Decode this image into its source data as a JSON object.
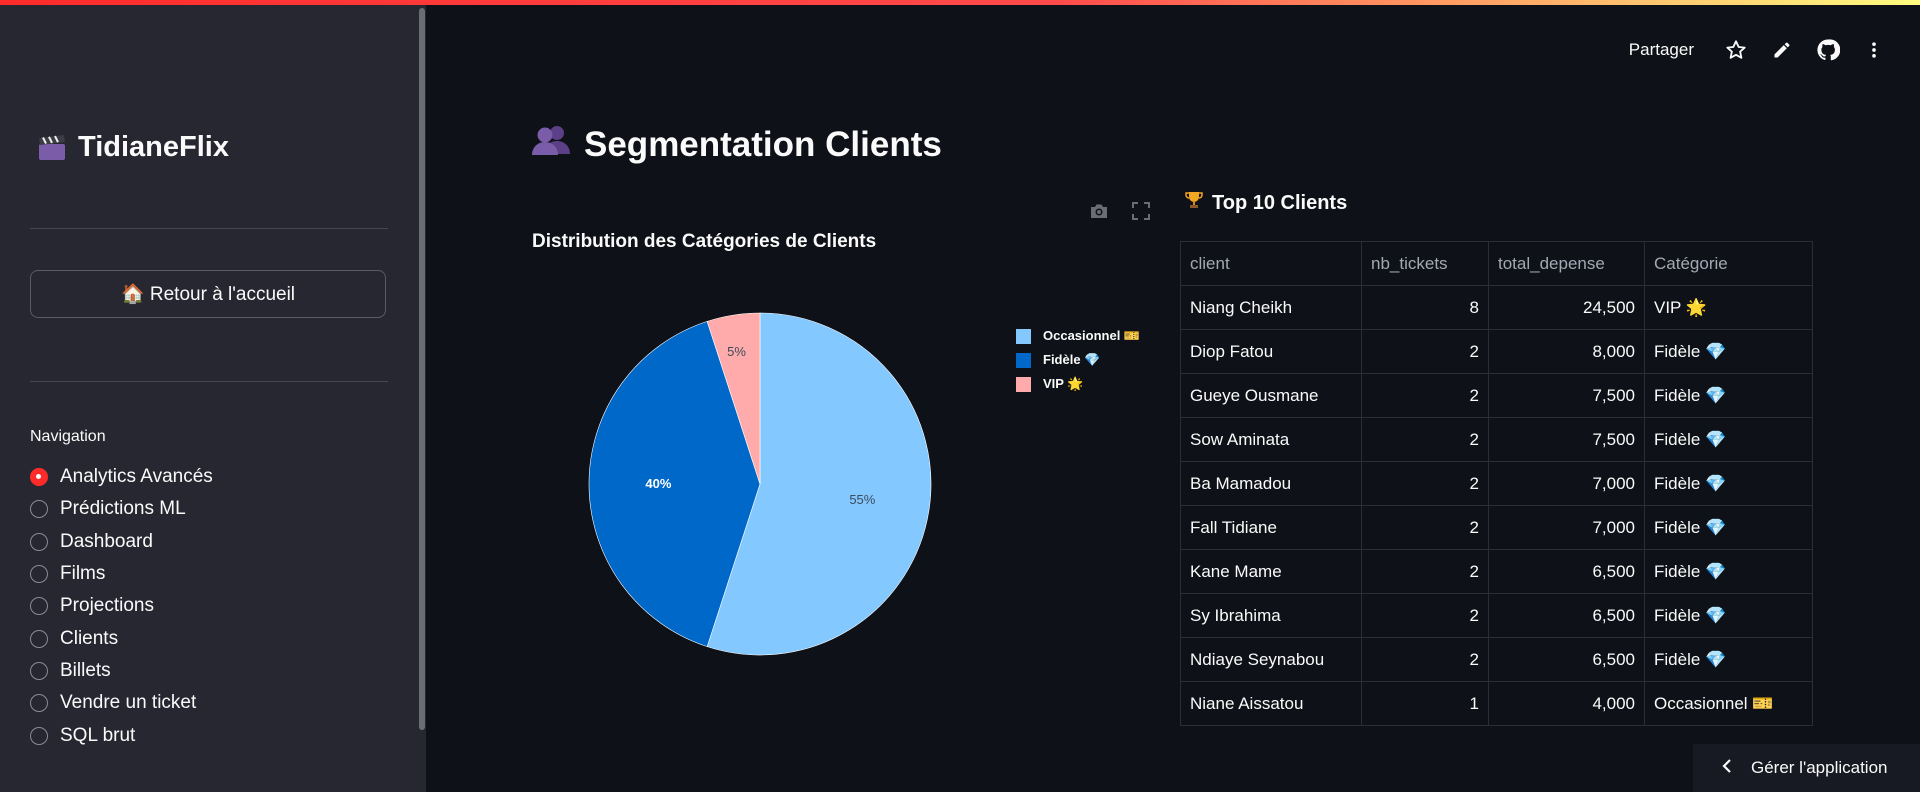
{
  "app": {
    "name": "TidianeFlix",
    "home_button": "🏠 Retour à l'accueil"
  },
  "header": {
    "share_label": "Partager",
    "icons": [
      "star-icon",
      "edit-icon",
      "github-icon",
      "more-vert-icon"
    ]
  },
  "navigation": {
    "label": "Navigation",
    "selected": "Analytics Avancés",
    "items": [
      {
        "label": "Analytics Avancés"
      },
      {
        "label": "Prédictions ML"
      },
      {
        "label": "Dashboard"
      },
      {
        "label": "Films"
      },
      {
        "label": "Projections"
      },
      {
        "label": "Clients"
      },
      {
        "label": "Billets"
      },
      {
        "label": "Vendre un ticket"
      },
      {
        "label": "SQL brut"
      }
    ]
  },
  "page": {
    "title": "Segmentation Clients",
    "title_icon": "busts-in-silhouette-icon"
  },
  "chart": {
    "tools": [
      "camera-icon",
      "fullscreen-icon"
    ],
    "colors": {
      "Occasionnel": "#83c9ff",
      "Fidèle": "#0068c9",
      "VIP": "#ffabab"
    }
  },
  "chart_data": {
    "type": "pie",
    "title": "Distribution des Catégories de Clients",
    "categories": [
      "Occasionnel 🎫",
      "Fidèle 💎",
      "VIP 🌟"
    ],
    "values": [
      55,
      40,
      5
    ],
    "labels": [
      "55%",
      "40%",
      "5%"
    ],
    "legend_position": "right"
  },
  "top_clients": {
    "title": "Top 10 Clients",
    "title_icon": "trophy-icon",
    "columns": [
      "client",
      "nb_tickets",
      "total_depense",
      "Catégorie"
    ],
    "rows": [
      {
        "client": "Niang Cheikh",
        "nb_tickets": "8",
        "total_depense": "24,500",
        "categorie": "VIP 🌟"
      },
      {
        "client": "Diop Fatou",
        "nb_tickets": "2",
        "total_depense": "8,000",
        "categorie": "Fidèle 💎"
      },
      {
        "client": "Gueye Ousmane",
        "nb_tickets": "2",
        "total_depense": "7,500",
        "categorie": "Fidèle 💎"
      },
      {
        "client": "Sow Aminata",
        "nb_tickets": "2",
        "total_depense": "7,500",
        "categorie": "Fidèle 💎"
      },
      {
        "client": "Ba Mamadou",
        "nb_tickets": "2",
        "total_depense": "7,000",
        "categorie": "Fidèle 💎"
      },
      {
        "client": "Fall Tidiane",
        "nb_tickets": "2",
        "total_depense": "7,000",
        "categorie": "Fidèle 💎"
      },
      {
        "client": "Kane Mame",
        "nb_tickets": "2",
        "total_depense": "6,500",
        "categorie": "Fidèle 💎"
      },
      {
        "client": "Sy Ibrahima",
        "nb_tickets": "2",
        "total_depense": "6,500",
        "categorie": "Fidèle 💎"
      },
      {
        "client": "Ndiaye Seynabou",
        "nb_tickets": "2",
        "total_depense": "6,500",
        "categorie": "Fidèle 💎"
      },
      {
        "client": "Niane Aissatou",
        "nb_tickets": "1",
        "total_depense": "4,000",
        "categorie": "Occasionnel 🎫"
      }
    ]
  },
  "footer": {
    "manage_label": "Gérer l'application"
  }
}
